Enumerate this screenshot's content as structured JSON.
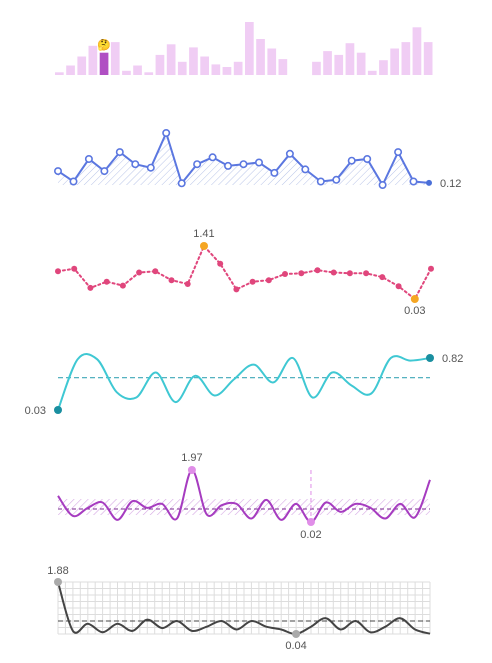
{
  "chart_data": [
    {
      "id": "bars",
      "type": "bar",
      "values": [
        0.05,
        0.18,
        0.35,
        0.55,
        0.42,
        0.62,
        0.08,
        0.18,
        0.05,
        0.38,
        0.58,
        0.25,
        0.52,
        0.35,
        0.2,
        0.15,
        0.25,
        1.0,
        0.68,
        0.5,
        0.3,
        null,
        null,
        0.25,
        0.45,
        0.38,
        0.6,
        0.42,
        0.08,
        0.28,
        0.5,
        0.62,
        0.9,
        0.62
      ],
      "highlight_index": 4,
      "highlight_marker": "🤔",
      "colors": {
        "bar": "#f0cdf4",
        "highlight": "#b04fc3"
      }
    },
    {
      "id": "blue",
      "type": "line",
      "values": [
        0.8,
        0.2,
        1.5,
        0.8,
        1.9,
        1.2,
        1.0,
        3.0,
        0.1,
        1.2,
        1.6,
        1.1,
        1.2,
        1.3,
        0.7,
        1.8,
        0.9,
        0.2,
        0.3,
        1.4,
        1.5,
        0.0,
        1.9,
        0.2,
        0.12
      ],
      "end_label": "0.12",
      "colors": {
        "line": "#5b77e0",
        "end_marker": "#4a6fd8"
      }
    },
    {
      "id": "pink",
      "type": "line",
      "values": [
        0.75,
        0.82,
        0.32,
        0.48,
        0.38,
        0.72,
        0.75,
        0.52,
        0.42,
        1.41,
        0.95,
        0.28,
        0.48,
        0.52,
        0.68,
        0.7,
        0.78,
        0.72,
        0.7,
        0.7,
        0.6,
        0.36,
        0.03,
        0.82
      ],
      "max_label": "1.41",
      "min_label": "0.03",
      "colors": {
        "line": "#e0467c",
        "extreme_marker": "#f5a623"
      }
    },
    {
      "id": "cyan",
      "type": "line",
      "values": [
        0.03,
        0.8,
        0.8,
        0.3,
        0.22,
        0.6,
        0.15,
        0.55,
        0.25,
        0.5,
        0.72,
        0.45,
        0.82,
        0.22,
        0.6,
        0.4,
        0.28,
        0.82,
        0.78,
        0.82
      ],
      "mean_value": 0.52,
      "start_label": "0.03",
      "end_label": "0.82",
      "colors": {
        "line": "#3fc8d3",
        "marker": "#1a8fa0",
        "mean": "#3fa8b8"
      }
    },
    {
      "id": "purple",
      "type": "line",
      "values": [
        1.0,
        0.25,
        0.55,
        0.75,
        0.1,
        0.8,
        0.55,
        0.7,
        0.15,
        1.97,
        0.3,
        0.65,
        0.7,
        0.15,
        0.85,
        0.1,
        0.7,
        0.02,
        0.75,
        0.4,
        0.7,
        0.55,
        0.15,
        0.7,
        0.2,
        1.6
      ],
      "max_label": "1.97",
      "min_label": "0.02",
      "colors": {
        "line": "#a63cc0",
        "marker": "#e08ee8",
        "band": "#c890d8"
      }
    },
    {
      "id": "gray",
      "type": "line",
      "values": [
        1.88,
        0.15,
        0.4,
        0.1,
        0.4,
        0.15,
        0.55,
        0.25,
        0.5,
        0.15,
        0.3,
        0.5,
        0.2,
        0.5,
        0.3,
        0.2,
        0.04,
        0.3,
        0.6,
        0.2,
        0.5,
        0.1,
        0.3,
        0.6,
        0.2,
        0.05
      ],
      "max_label": "1.88",
      "min_label": "0.04",
      "colors": {
        "line": "#444444",
        "marker": "#aaaaaa",
        "grid": "#dddddd"
      }
    }
  ]
}
